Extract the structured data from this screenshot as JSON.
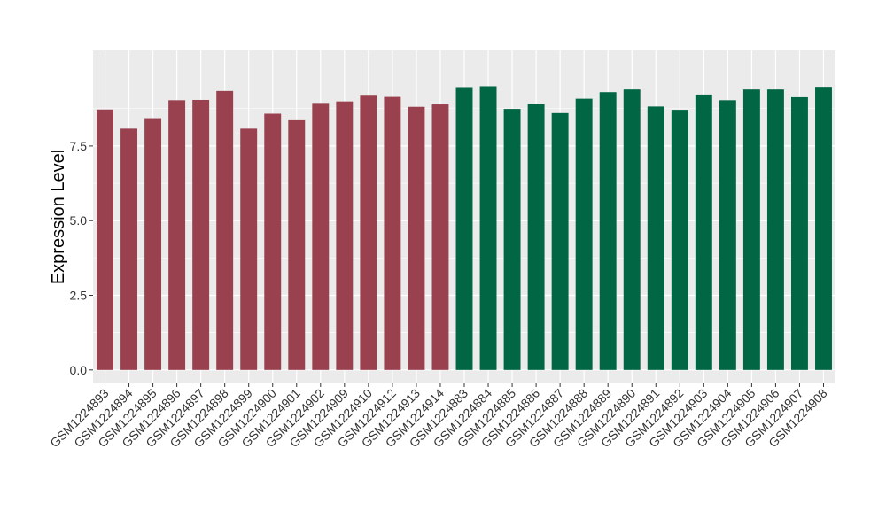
{
  "chart_data": {
    "type": "bar",
    "title": "",
    "xlabel": "",
    "ylabel": "Expression Level",
    "ylim": [
      -0.45,
      10.7
    ],
    "yticks": [
      0.0,
      2.5,
      5.0,
      7.5
    ],
    "ytick_labels": [
      "0.0",
      "2.5",
      "5.0",
      "7.5"
    ],
    "grid": true,
    "legend": "none",
    "panel_background": "#ebebeb",
    "grid_color": "#ffffff",
    "group_colors": [
      "#99414f",
      "#006644"
    ],
    "categories": [
      "GSM1224893",
      "GSM1224894",
      "GSM1224895",
      "GSM1224896",
      "GSM1224897",
      "GSM1224898",
      "GSM1224899",
      "GSM1224900",
      "GSM1224901",
      "GSM1224902",
      "GSM1224909",
      "GSM1224910",
      "GSM1224912",
      "GSM1224913",
      "GSM1224914",
      "GSM1224883",
      "GSM1224884",
      "GSM1224885",
      "GSM1224886",
      "GSM1224887",
      "GSM1224888",
      "GSM1224889",
      "GSM1224890",
      "GSM1224891",
      "GSM1224892",
      "GSM1224903",
      "GSM1224904",
      "GSM1224905",
      "GSM1224906",
      "GSM1224907",
      "GSM1224908"
    ],
    "values": [
      8.72,
      8.08,
      8.43,
      9.03,
      9.04,
      9.34,
      8.08,
      8.58,
      8.39,
      8.94,
      8.99,
      9.21,
      9.17,
      8.81,
      8.89,
      9.47,
      9.5,
      8.74,
      8.9,
      8.6,
      9.08,
      9.3,
      9.39,
      8.82,
      8.71,
      9.22,
      9.03,
      9.39,
      9.39,
      9.16,
      9.48
    ],
    "groups": [
      0,
      0,
      0,
      0,
      0,
      0,
      0,
      0,
      0,
      0,
      0,
      0,
      0,
      0,
      0,
      1,
      1,
      1,
      1,
      1,
      1,
      1,
      1,
      1,
      1,
      1,
      1,
      1,
      1,
      1,
      1
    ]
  }
}
